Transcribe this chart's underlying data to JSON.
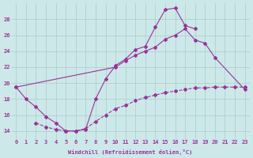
{
  "xlabel": "Windchill (Refroidissement éolien,°C)",
  "x": [
    0,
    1,
    2,
    3,
    4,
    5,
    6,
    7,
    8,
    9,
    10,
    11,
    12,
    13,
    14,
    15,
    16,
    17,
    18,
    19,
    20,
    21,
    22,
    23
  ],
  "line1": [
    19.5,
    18.0,
    17.0,
    15.8,
    15.0,
    14.0,
    14.0,
    14.2,
    18.0,
    20.5,
    22.2,
    23.0,
    24.2,
    24.6,
    27.0,
    29.2,
    29.4,
    27.2,
    26.8,
    null,
    null,
    null,
    null,
    null
  ],
  "line2": [
    19.5,
    null,
    null,
    null,
    null,
    null,
    null,
    null,
    null,
    null,
    22.0,
    22.8,
    23.5,
    24.0,
    24.5,
    25.5,
    26.0,
    26.8,
    25.4,
    25.0,
    23.2,
    null,
    null,
    19.2
  ],
  "line3": [
    null,
    null,
    15.0,
    14.5,
    14.2,
    14.0,
    14.0,
    14.3,
    15.2,
    16.0,
    16.8,
    17.2,
    17.8,
    18.2,
    18.5,
    18.8,
    19.0,
    19.2,
    19.4,
    19.4,
    19.5,
    19.5,
    19.5,
    19.5
  ],
  "background_color": "#cce8e8",
  "grid_color": "#aacccc",
  "line_color": "#993399",
  "xlim": [
    -0.5,
    23.5
  ],
  "ylim": [
    13,
    30
  ],
  "yticks": [
    14,
    16,
    18,
    20,
    22,
    24,
    26,
    28
  ],
  "xticks": [
    0,
    1,
    2,
    3,
    4,
    5,
    6,
    7,
    8,
    9,
    10,
    11,
    12,
    13,
    14,
    15,
    16,
    17,
    18,
    19,
    20,
    21,
    22,
    23
  ],
  "figsize": [
    3.2,
    2.0
  ],
  "dpi": 100
}
